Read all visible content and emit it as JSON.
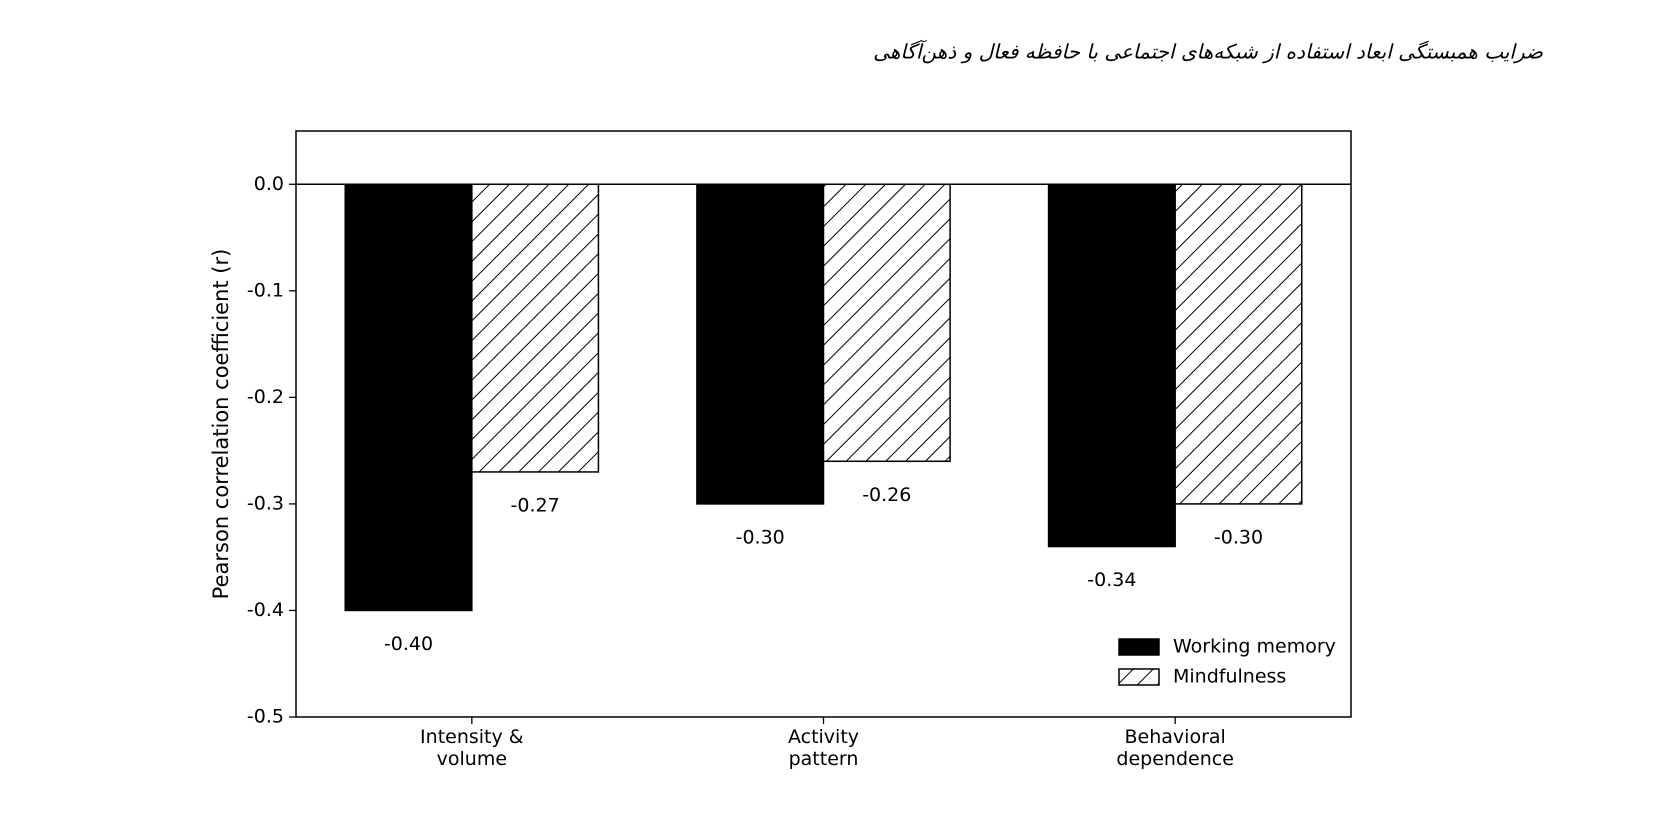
{
  "chart_data": {
    "type": "bar",
    "title": "ضرایب همبستگی ابعاد استفاده از شبکه‌های اجتماعی با حافظه فعال و ذهن‌آگاهی",
    "categories": [
      "Intensity &\nvolume",
      "Activity\npattern",
      "Behavioral\ndependence"
    ],
    "series": [
      {
        "name": "Working memory",
        "color": "#000000",
        "values": [
          -0.4,
          -0.3,
          -0.34
        ],
        "value_labels": [
          "-0.40",
          "-0.30",
          "-0.34"
        ]
      },
      {
        "name": "Mindfulness",
        "color": "#ffffff",
        "hatch": "//",
        "values": [
          -0.27,
          -0.26,
          -0.3
        ],
        "value_labels": [
          "-0.27",
          "-0.26",
          "-0.30"
        ]
      }
    ],
    "y_label": "Pearson correlation coefficient (r)",
    "ylim": [
      -0.5,
      0.05
    ],
    "yticks": [
      {
        "value": 0,
        "label": "0.0"
      },
      -0.1,
      -0.2,
      -0.3,
      -0.4,
      -0.5
    ],
    "legend": "lower right"
  }
}
